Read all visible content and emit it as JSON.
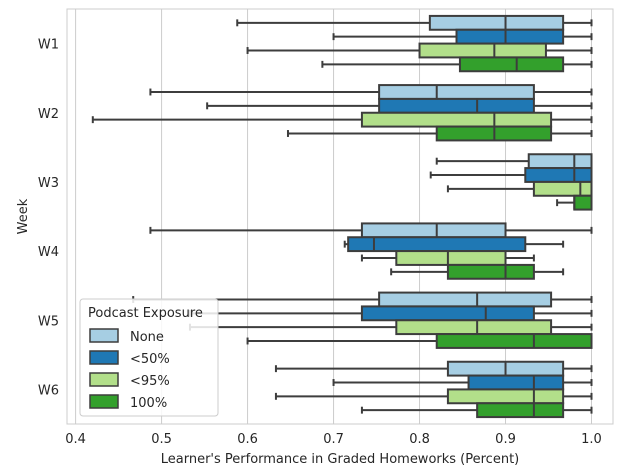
{
  "chart_data": {
    "type": "boxplot",
    "orientation": "horizontal",
    "xlabel": "Learner's Performance in Graded Homeworks (Percent)",
    "ylabel": "Week",
    "xlim": [
      0.39,
      1.025
    ],
    "xticks": [
      0.4,
      0.5,
      0.6,
      0.7,
      0.8,
      0.9,
      1.0
    ],
    "xtick_labels": [
      "0.4",
      "0.5",
      "0.6",
      "0.7",
      "0.8",
      "0.9",
      "1.0"
    ],
    "grid": "vertical",
    "categories": [
      "W1",
      "W2",
      "W3",
      "W4",
      "W5",
      "W6"
    ],
    "legend": {
      "title": "Podcast Exposure",
      "placement": "lower-left",
      "entries": [
        "None",
        "<50%",
        "<95%",
        "100%"
      ]
    },
    "series": [
      {
        "name": "None",
        "color": "#a6cee3",
        "boxes": [
          {
            "whisker_low": 0.588,
            "q1": 0.812,
            "median": 0.9,
            "q3": 0.967,
            "whisker_high": 1.0
          },
          {
            "whisker_low": 0.487,
            "q1": 0.753,
            "median": 0.82,
            "q3": 0.933,
            "whisker_high": 1.0
          },
          {
            "whisker_low": 0.82,
            "q1": 0.927,
            "median": 0.98,
            "q3": 1.0,
            "whisker_high": 1.0
          },
          {
            "whisker_low": 0.487,
            "q1": 0.733,
            "median": 0.82,
            "q3": 0.9,
            "whisker_high": 1.0
          },
          {
            "whisker_low": 0.467,
            "q1": 0.753,
            "median": 0.867,
            "q3": 0.953,
            "whisker_high": 1.0
          },
          {
            "whisker_low": 0.633,
            "q1": 0.833,
            "median": 0.9,
            "q3": 0.967,
            "whisker_high": 1.0
          }
        ]
      },
      {
        "name": "<50%",
        "color": "#1f78b4",
        "boxes": [
          {
            "whisker_low": 0.7,
            "q1": 0.843,
            "median": 0.9,
            "q3": 0.967,
            "whisker_high": 1.0
          },
          {
            "whisker_low": 0.553,
            "q1": 0.753,
            "median": 0.867,
            "q3": 0.933,
            "whisker_high": 1.0
          },
          {
            "whisker_low": 0.813,
            "q1": 0.923,
            "median": 0.98,
            "q3": 1.0,
            "whisker_high": 1.0
          },
          {
            "whisker_low": 0.713,
            "q1": 0.717,
            "median": 0.747,
            "q3": 0.923,
            "whisker_high": 0.967
          },
          {
            "whisker_low": 0.533,
            "q1": 0.733,
            "median": 0.877,
            "q3": 0.933,
            "whisker_high": 1.0
          },
          {
            "whisker_low": 0.7,
            "q1": 0.857,
            "median": 0.933,
            "q3": 0.967,
            "whisker_high": 1.0
          }
        ]
      },
      {
        "name": "<95%",
        "color": "#b2df8a",
        "boxes": [
          {
            "whisker_low": 0.6,
            "q1": 0.8,
            "median": 0.887,
            "q3": 0.947,
            "whisker_high": 1.0
          },
          {
            "whisker_low": 0.42,
            "q1": 0.733,
            "median": 0.887,
            "q3": 0.953,
            "whisker_high": 1.0
          },
          {
            "whisker_low": 0.833,
            "q1": 0.933,
            "median": 0.987,
            "q3": 1.0,
            "whisker_high": 1.0
          },
          {
            "whisker_low": 0.733,
            "q1": 0.773,
            "median": 0.833,
            "q3": 0.9,
            "whisker_high": 0.933
          },
          {
            "whisker_low": 0.533,
            "q1": 0.773,
            "median": 0.867,
            "q3": 0.953,
            "whisker_high": 1.0
          },
          {
            "whisker_low": 0.633,
            "q1": 0.833,
            "median": 0.933,
            "q3": 0.967,
            "whisker_high": 1.0
          }
        ]
      },
      {
        "name": "100%",
        "color": "#33a02c",
        "boxes": [
          {
            "whisker_low": 0.687,
            "q1": 0.847,
            "median": 0.913,
            "q3": 0.967,
            "whisker_high": 1.0
          },
          {
            "whisker_low": 0.647,
            "q1": 0.82,
            "median": 0.887,
            "q3": 0.953,
            "whisker_high": 1.0
          },
          {
            "whisker_low": 0.96,
            "q1": 0.98,
            "median": 0.98,
            "q3": 1.0,
            "whisker_high": 1.0
          },
          {
            "whisker_low": 0.767,
            "q1": 0.833,
            "median": 0.9,
            "q3": 0.933,
            "whisker_high": 0.967
          },
          {
            "whisker_low": 0.6,
            "q1": 0.82,
            "median": 0.933,
            "q3": 1.0,
            "whisker_high": 1.0
          },
          {
            "whisker_low": 0.733,
            "q1": 0.867,
            "median": 0.933,
            "q3": 0.967,
            "whisker_high": 1.0
          }
        ]
      }
    ]
  }
}
